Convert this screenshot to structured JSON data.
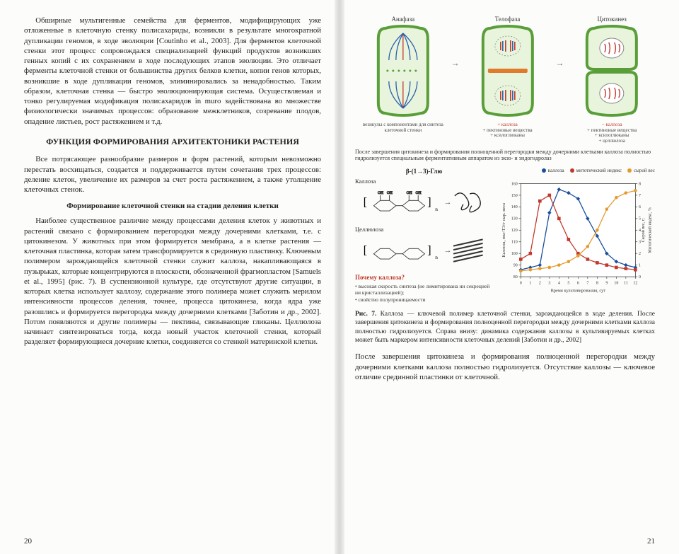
{
  "left": {
    "para1": "Обширные мультигенные семейства для ферментов, модифицирующих уже отложенные в клеточную стенку полисахариды, возникли в результате многократной дупликации геномов, в ходе эволюции [Coutinho et al., 2003]. Для ферментов клеточной стенки этот процесс сопровождался специализацией функций продуктов возникших генных копий с их сохранением в ходе последующих этапов эволюции. Это отличает ферменты клеточной стенки от большинства других белков клетки, копии генов которых, возникшие в ходе дупликации геномов, элиминировались за ненадобностью. Таким образом, клеточная стенка — быстро эволюционирующая система. Осуществляемая и тонко регулируемая модификация полисахаридов in muro задействована во множестве физиологически значимых процессов: образование межклетников, созревание плодов, опадение листьев, рост растяжением и т.д.",
    "section_title": "ФУНКЦИЯ ФОРМИРОВАНИЯ АРХИТЕКТОНИКИ РАСТЕНИЯ",
    "para2": "Все потрясающее разнообразие размеров и форм растений, которым невозможно перестать восхищаться, создается и поддерживается путем сочетания трех процессов: деление клеток, увеличение их размеров за счет роста растяжением, а также утолщение клеточных стенок.",
    "subsection": "Формирование клеточной стенки на стадии деления клетки",
    "para3": "Наиболее существенное различие между процессами деления клеток у животных и растений связано с формированием перегородки между дочерними клетками, т.е. с цитокинезом. У животных при этом формируется мембрана, а в клетке растения — клеточная пластинка, которая затем трансформируется в срединную пластинку. Ключевым полимером зарождающейся клеточной стенки служит каллоза, накапливающаяся в пузырьках, которые концентрируются в плоскости, обозначенной фрагмопластом [Samuels et al., 1995] (рис. 7). В суспензионной культуре, где отсутствуют другие ситуации, в которых клетка использует каллозу, содержание этого полимера может служить мерилом интенсивности процессов деления, точнее, процесса цитокинеза, когда ядра уже разошлись и формируется перегородка между дочерними клетками [Заботин и др., 2002]. Потом появляются и другие полимеры — пектины, связывающие гликаны. Целлюлоза начинает синтезироваться тогда, когда новый участок клеточной стенки, который разделяет формирующиеся дочерние клетки, соединяется со стенкой материнской клетки.",
    "page_num": "20"
  },
  "right": {
    "stages": {
      "a": "Анафаза",
      "b": "Телофаза",
      "c": "Цитокинез",
      "cap_a": "везикулы с компонентами для синтеза клеточной стенки",
      "cap_b_hl": "+ каллоза",
      "cap_b": "+ пектиновые вещества\n+ ксилоглюканы",
      "cap_c_hl": "− каллоза",
      "cap_c": "+ пектиновые вещества\n+ ксилоглюканы\n+ целлюлоза"
    },
    "after_cells_note": "После завершения цитокинеза и формирования полноценной перегородки между дочерними клетками каллоза полностью гидролизуется специальным ферментативным аппаратом из экзо- и эндогидролаз",
    "after_cells_hl": "полностью",
    "formulas": {
      "header": "β-(1→3)-Глю",
      "callose": "Каллоза",
      "cellulose": "Целлюлоза",
      "why": "Почему каллоза?",
      "bullets": "• высокая скорость синтеза (не лимитирована ни секрецией ни кристаллизацией);\n• свойство полупроницаемости"
    },
    "chart": {
      "type": "line",
      "x": [
        0,
        1,
        2,
        3,
        4,
        5,
        6,
        7,
        8,
        9,
        10,
        11,
        12
      ],
      "xlim": [
        0,
        12
      ],
      "ylim_left": [
        80,
        160
      ],
      "ylim_right": [
        0,
        8
      ],
      "ylabel_left": "Каллоза, мкг/TЭ/г сыр. веса",
      "ylabel_right1": "Сырой вес, г;",
      "ylabel_right2": "Митотический индекс, %",
      "xlabel": "Время культивирования, сут",
      "series": [
        {
          "name": "каллоза",
          "color": "#1b4f9c",
          "marker": "diamond",
          "yaxis": "left",
          "x": [
            0,
            1,
            2,
            3,
            4,
            5,
            6,
            7,
            8,
            9,
            10,
            11,
            12
          ],
          "y": [
            86,
            88,
            90,
            135,
            155,
            152,
            147,
            130,
            115,
            100,
            93,
            90,
            88
          ]
        },
        {
          "name": "митотический индекс",
          "color": "#c0392b",
          "marker": "square",
          "yaxis": "right",
          "x": [
            0,
            1,
            2,
            3,
            4,
            5,
            6,
            7,
            8,
            9,
            10,
            11,
            12
          ],
          "y": [
            1.5,
            2.0,
            6.5,
            7.0,
            5.0,
            3.2,
            2.0,
            1.5,
            1.2,
            1.0,
            0.8,
            0.7,
            0.6
          ]
        },
        {
          "name": "сырой вес",
          "color": "#e59a2e",
          "marker": "circle",
          "yaxis": "right",
          "x": [
            0,
            1,
            2,
            3,
            4,
            5,
            6,
            7,
            8,
            9,
            10,
            11,
            12
          ],
          "y": [
            0.5,
            0.6,
            0.7,
            0.8,
            1.0,
            1.3,
            1.8,
            2.6,
            4.0,
            5.8,
            6.8,
            7.2,
            7.4
          ]
        }
      ],
      "ytick_left": [
        80,
        90,
        100,
        110,
        120,
        130,
        140,
        150,
        160
      ],
      "ytick_right": [
        0,
        1,
        2,
        3,
        4,
        5,
        6,
        7,
        8
      ],
      "xtick": [
        0,
        1,
        2,
        3,
        4,
        5,
        6,
        7,
        8,
        9,
        10,
        11,
        12
      ],
      "grid_color": "#d0d0d0",
      "background_color": "#ffffff",
      "title_fontsize": 8,
      "label_fontsize": 7
    },
    "legend": {
      "a": "каллоза",
      "b": "митотический индекс",
      "c": "сырой вес"
    },
    "fig_caption": "Рис. 7. Каллоза — ключевой полимер клеточной стенки, зарождающейся в ходе деления. После завершения цитокинеза и формирования полноценной перегородки между дочерними клетками каллоза полностью гидролизуется. Справа внизу: динамика содержания каллозы в культивируемых клетках может быть маркером интенсивности клеточных делений [Заботин и др., 2002]",
    "bottom_para": "После завершения цитокинеза и формирования полноценной перегородки между дочерними клетками каллоза полностью гидролизуется. Отсутствие каллозы — ключевое отличие срединной пластинки от клеточной.",
    "page_num": "21"
  },
  "colors": {
    "cell_wall": "#5a9e3a",
    "cell_fill": "#e8f5dc",
    "spindle_blue": "#2a5fb0",
    "spindle_red": "#c0392b",
    "callose_orange": "#e07b2e",
    "arrow": "#888888"
  }
}
